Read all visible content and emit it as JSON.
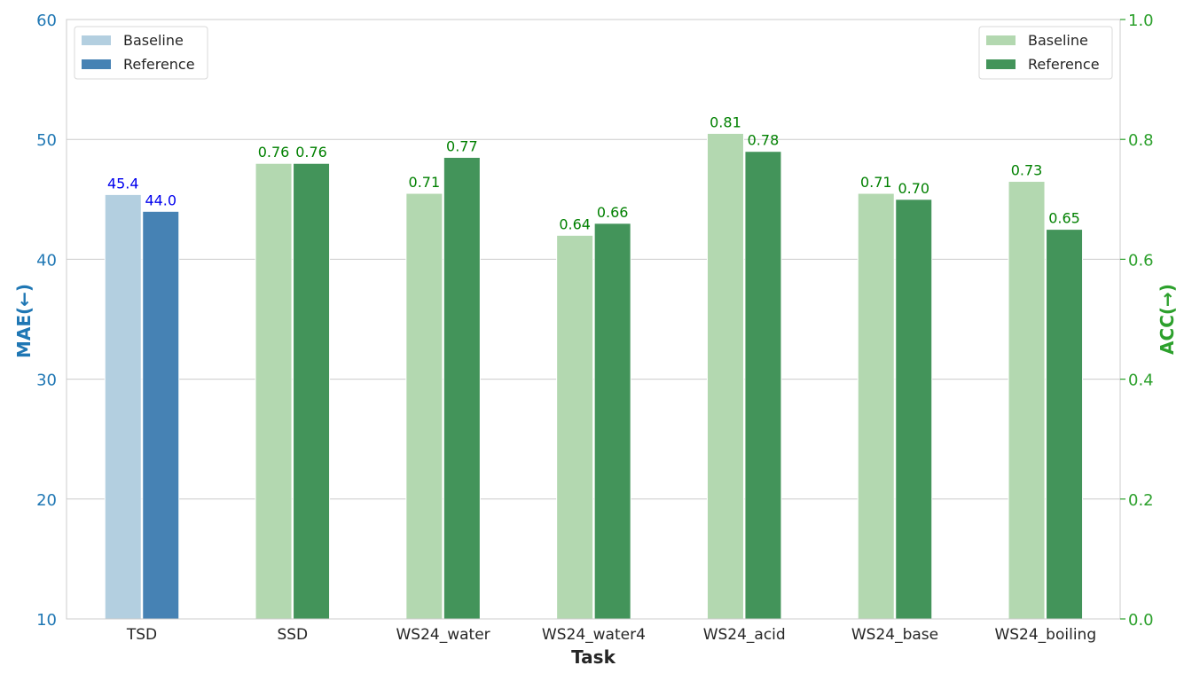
{
  "chart_data": {
    "type": "bar",
    "xlabel": "Task",
    "categories": [
      "TSD",
      "SSD",
      "WS24_water",
      "WS24_water4",
      "WS24_acid",
      "WS24_base",
      "WS24_boiling"
    ],
    "y_left": {
      "label": "MAE(←)",
      "lim": [
        10,
        60
      ],
      "ticks": [
        10,
        20,
        30,
        40,
        50,
        60
      ],
      "color": "#1f77b4"
    },
    "y_right": {
      "label": "ACC(→)",
      "lim": [
        0.0,
        1.0
      ],
      "ticks": [
        "0.0",
        "0.2",
        "0.4",
        "0.6",
        "0.8",
        "1.0"
      ],
      "color": "#2ca02c"
    },
    "grid": "horizontal",
    "mae_series": [
      {
        "name": "Baseline",
        "color": "#b3cfe0",
        "category": "TSD",
        "value": 45.4,
        "label": "45.4"
      },
      {
        "name": "Reference",
        "color": "#4682b4",
        "category": "TSD",
        "value": 44.0,
        "label": "44.0"
      }
    ],
    "acc_series": [
      {
        "name": "Baseline",
        "color": "#b3d8b0",
        "categories": [
          "SSD",
          "WS24_water",
          "WS24_water4",
          "WS24_acid",
          "WS24_base",
          "WS24_boiling"
        ],
        "values": [
          0.76,
          0.71,
          0.64,
          0.81,
          0.71,
          0.73
        ],
        "labels": [
          "0.76",
          "0.71",
          "0.64",
          "0.81",
          "0.71",
          "0.73"
        ]
      },
      {
        "name": "Reference",
        "color": "#43945a",
        "categories": [
          "SSD",
          "WS24_water",
          "WS24_water4",
          "WS24_acid",
          "WS24_base",
          "WS24_boiling"
        ],
        "values": [
          0.76,
          0.77,
          0.66,
          0.78,
          0.7,
          0.65
        ],
        "labels": [
          "0.76",
          "0.77",
          "0.66",
          "0.78",
          "0.70",
          "0.65"
        ]
      }
    ],
    "legend_left": {
      "position": "top-left",
      "items": [
        {
          "label": "Baseline",
          "color": "#b3cfe0"
        },
        {
          "label": "Reference",
          "color": "#4682b4"
        }
      ]
    },
    "legend_right": {
      "position": "top-right",
      "items": [
        {
          "label": "Baseline",
          "color": "#b3d8b0"
        },
        {
          "label": "Reference",
          "color": "#43945a"
        }
      ]
    }
  }
}
